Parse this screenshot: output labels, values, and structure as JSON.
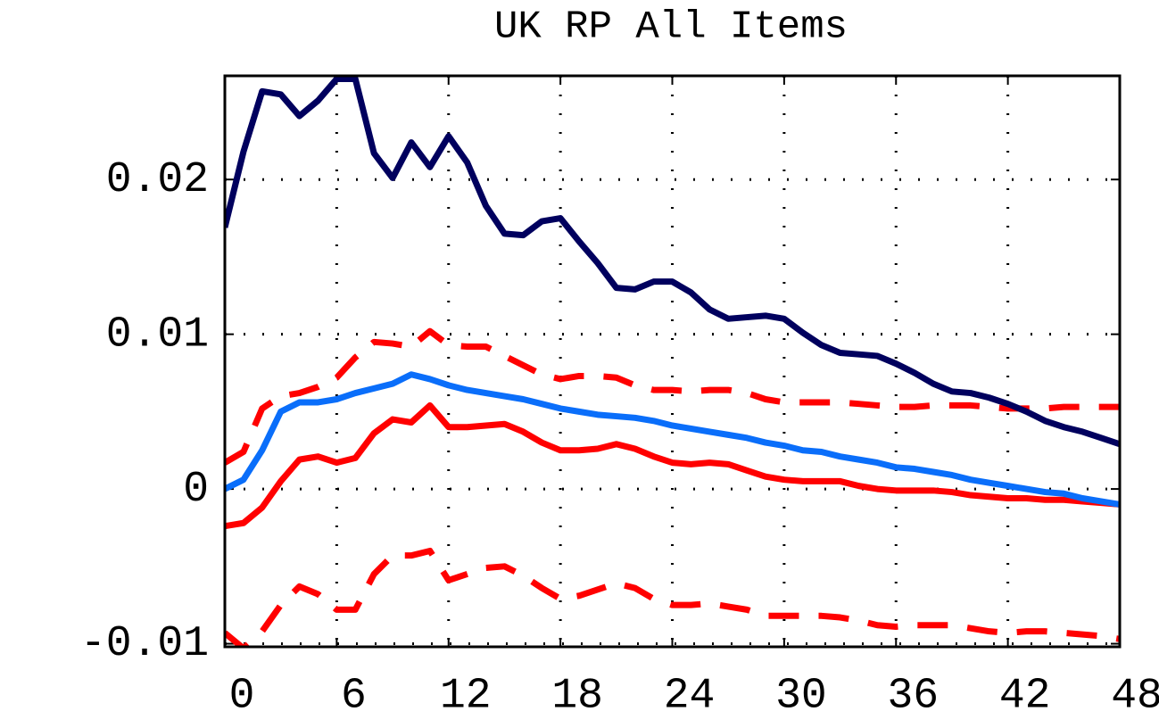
{
  "chart_data": {
    "type": "line",
    "title": "UK RP All Items",
    "x": [
      0,
      1,
      2,
      3,
      4,
      5,
      6,
      7,
      8,
      9,
      10,
      11,
      12,
      13,
      14,
      15,
      16,
      17,
      18,
      19,
      20,
      21,
      22,
      23,
      24,
      25,
      26,
      27,
      28,
      29,
      30,
      31,
      32,
      33,
      34,
      35,
      36,
      37,
      38,
      39,
      40,
      41,
      42,
      43,
      44,
      45,
      46,
      47,
      48
    ],
    "series": [
      {
        "color": "#00005e",
        "dashed": false,
        "values": [
          0.0169,
          0.0218,
          0.0257,
          0.0255,
          0.0241,
          0.0251,
          0.0265,
          0.0265,
          0.0217,
          0.0201,
          0.0224,
          0.0208,
          0.0228,
          0.0211,
          0.0183,
          0.0165,
          0.0164,
          0.0173,
          0.0175,
          0.016,
          0.0146,
          0.013,
          0.0129,
          0.0134,
          0.0134,
          0.0127,
          0.0116,
          0.011,
          0.0111,
          0.0112,
          0.011,
          0.0101,
          0.0093,
          0.0088,
          0.0087,
          0.0086,
          0.0081,
          0.0075,
          0.0068,
          0.0063,
          0.0062,
          0.0059,
          0.0055,
          0.005,
          0.0044,
          0.004,
          0.0037,
          0.0033,
          0.0029
        ]
      },
      {
        "color": "#0a6efa",
        "dashed": false,
        "values": [
          0,
          0.0006,
          0.0025,
          0.005,
          0.0056,
          0.0056,
          0.0058,
          0.0062,
          0.0065,
          0.0068,
          0.0074,
          0.0071,
          0.0067,
          0.0064,
          0.0062,
          0.006,
          0.0058,
          0.0055,
          0.0052,
          0.005,
          0.0048,
          0.0047,
          0.0046,
          0.0044,
          0.0041,
          0.0039,
          0.0037,
          0.0035,
          0.0033,
          0.003,
          0.0028,
          0.0025,
          0.0024,
          0.0021,
          0.0019,
          0.0017,
          0.0014,
          0.0013,
          0.0011,
          0.0009,
          0.0006,
          0.0004,
          0.0002,
          0,
          -0.0002,
          -0.0003,
          -0.0006,
          -0.0008,
          -0.001
        ]
      },
      {
        "color": "#ff0000",
        "dashed": false,
        "values": [
          -0.0024,
          -0.0022,
          -0.0012,
          0.0005,
          0.0019,
          0.0021,
          0.0017,
          0.002,
          0.0036,
          0.0045,
          0.0043,
          0.0054,
          0.004,
          0.004,
          0.0041,
          0.0042,
          0.0037,
          0.003,
          0.0025,
          0.0025,
          0.0026,
          0.0029,
          0.0026,
          0.0021,
          0.0017,
          0.0016,
          0.0017,
          0.0016,
          0.0012,
          0.0008,
          0.0006,
          0.0005,
          0.0005,
          0.0005,
          0.0002,
          0,
          -0.0001,
          -0.0001,
          -0.0001,
          -0.0002,
          -0.0004,
          -0.0005,
          -0.0006,
          -0.0006,
          -0.0007,
          -0.0007,
          -0.0008,
          -0.0009,
          -0.001
        ]
      },
      {
        "color": "#ff0000",
        "dashed": true,
        "values": [
          0.0017,
          0.0024,
          0.0052,
          0.006,
          0.0062,
          0.0066,
          0.0072,
          0.0085,
          0.0095,
          0.0094,
          0.0092,
          0.0102,
          0.0093,
          0.0092,
          0.0092,
          0.0086,
          0.008,
          0.0074,
          0.0071,
          0.0073,
          0.0073,
          0.0072,
          0.0067,
          0.0064,
          0.0064,
          0.0063,
          0.0064,
          0.0064,
          0.0062,
          0.0058,
          0.0056,
          0.0056,
          0.0056,
          0.0056,
          0.0055,
          0.0054,
          0.0053,
          0.0053,
          0.0054,
          0.0054,
          0.0054,
          0.0053,
          0.0052,
          0.0052,
          0.0052,
          0.0053,
          0.0053,
          0.0053,
          0.0053
        ]
      },
      {
        "color": "#ff0000",
        "dashed": true,
        "values": [
          -0.0093,
          -0.0103,
          -0.0092,
          -0.0075,
          -0.0063,
          -0.0068,
          -0.0078,
          -0.0078,
          -0.0055,
          -0.0043,
          -0.0043,
          -0.004,
          -0.0059,
          -0.0055,
          -0.0051,
          -0.005,
          -0.0056,
          -0.0064,
          -0.0071,
          -0.0069,
          -0.0065,
          -0.0061,
          -0.0064,
          -0.0071,
          -0.0075,
          -0.0075,
          -0.0074,
          -0.0076,
          -0.0078,
          -0.0082,
          -0.0082,
          -0.0082,
          -0.0082,
          -0.0083,
          -0.0085,
          -0.0088,
          -0.0089,
          -0.0088,
          -0.0088,
          -0.0088,
          -0.009,
          -0.0092,
          -0.0093,
          -0.0092,
          -0.0092,
          -0.0093,
          -0.0094,
          -0.0095,
          -0.0097
        ]
      }
    ],
    "xlim": [
      0,
      48
    ],
    "xticks": [
      0,
      6,
      12,
      18,
      24,
      30,
      36,
      42,
      48
    ],
    "ylim": [
      -0.0102,
      0.0267
    ],
    "yticks": [
      -0.01,
      0,
      0.01,
      0.02
    ],
    "grid": true
  }
}
